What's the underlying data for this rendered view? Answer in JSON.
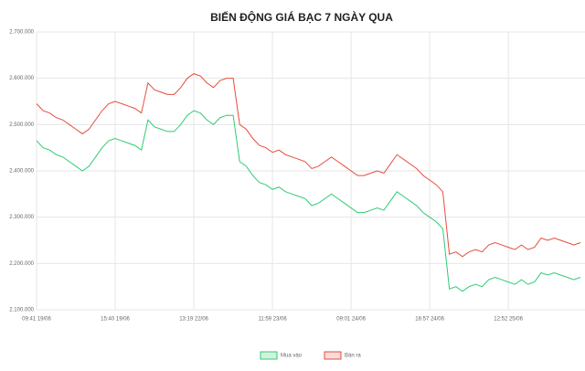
{
  "chart_data": {
    "type": "line",
    "title": "BIẾN ĐỘNG GIÁ BẠC 7 NGÀY QUA",
    "categories": [
      "09:41 19/06",
      null,
      null,
      null,
      null,
      null,
      null,
      null,
      null,
      null,
      null,
      null,
      "15:40 19/06",
      null,
      null,
      null,
      null,
      null,
      null,
      null,
      null,
      null,
      null,
      null,
      "13:19 22/06",
      null,
      null,
      null,
      null,
      null,
      null,
      null,
      null,
      null,
      null,
      null,
      "11:59 23/06",
      null,
      null,
      null,
      null,
      null,
      null,
      null,
      null,
      null,
      null,
      null,
      "09:01 24/06",
      null,
      null,
      null,
      null,
      null,
      null,
      null,
      null,
      null,
      null,
      null,
      "16:57 24/06",
      null,
      null,
      null,
      null,
      null,
      null,
      null,
      null,
      null,
      null,
      null,
      "12:52 25/06",
      null,
      null,
      null,
      null,
      null,
      null,
      null,
      null,
      null,
      null,
      null
    ],
    "series": [
      {
        "name": "Mua vào",
        "color": "#2ecc71",
        "fill": "#d4f1e0",
        "values": [
          2465000,
          2450000,
          2445000,
          2435000,
          2430000,
          2420000,
          2410000,
          2400000,
          2410000,
          2430000,
          2450000,
          2465000,
          2470000,
          2465000,
          2460000,
          2455000,
          2445000,
          2510000,
          2495000,
          2490000,
          2485000,
          2485000,
          2500000,
          2520000,
          2530000,
          2525000,
          2510000,
          2500000,
          2515000,
          2520000,
          2520000,
          2420000,
          2410000,
          2390000,
          2375000,
          2370000,
          2360000,
          2365000,
          2355000,
          2350000,
          2345000,
          2340000,
          2325000,
          2330000,
          2340000,
          2350000,
          2340000,
          2330000,
          2320000,
          2310000,
          2310000,
          2315000,
          2320000,
          2315000,
          2335000,
          2355000,
          2345000,
          2335000,
          2325000,
          2310000,
          2300000,
          2290000,
          2275000,
          2145000,
          2150000,
          2140000,
          2150000,
          2155000,
          2150000,
          2165000,
          2170000,
          2165000,
          2160000,
          2155000,
          2165000,
          2155000,
          2160000,
          2180000,
          2175000,
          2180000,
          2175000,
          2170000,
          2165000,
          2170000
        ]
      },
      {
        "name": "Bán ra",
        "color": "#e74c3c",
        "fill": "#fadbd8",
        "values": [
          2545000,
          2530000,
          2525000,
          2515000,
          2510000,
          2500000,
          2490000,
          2480000,
          2490000,
          2510000,
          2530000,
          2545000,
          2550000,
          2545000,
          2540000,
          2535000,
          2525000,
          2590000,
          2575000,
          2570000,
          2565000,
          2565000,
          2580000,
          2600000,
          2610000,
          2605000,
          2590000,
          2580000,
          2595000,
          2600000,
          2600000,
          2500000,
          2490000,
          2470000,
          2455000,
          2450000,
          2440000,
          2445000,
          2435000,
          2430000,
          2425000,
          2420000,
          2405000,
          2410000,
          2420000,
          2430000,
          2420000,
          2410000,
          2400000,
          2390000,
          2390000,
          2395000,
          2400000,
          2395000,
          2415000,
          2435000,
          2425000,
          2415000,
          2405000,
          2390000,
          2380000,
          2370000,
          2355000,
          2220000,
          2225000,
          2215000,
          2225000,
          2230000,
          2225000,
          2240000,
          2245000,
          2240000,
          2235000,
          2230000,
          2240000,
          2230000,
          2235000,
          2255000,
          2250000,
          2255000,
          2250000,
          2245000,
          2240000,
          2245000
        ]
      }
    ],
    "ylim": [
      2100000,
      2700000
    ],
    "yticks": [
      {
        "value": 2100000,
        "label": "2.100.000"
      },
      {
        "value": 2200000,
        "label": "2.200.000"
      },
      {
        "value": 2300000,
        "label": "2.300.000"
      },
      {
        "value": 2400000,
        "label": "2.400.000"
      },
      {
        "value": 2500000,
        "label": "2.500.000"
      },
      {
        "value": 2600000,
        "label": "2.600.000"
      },
      {
        "value": 2700000,
        "label": "2.700.000"
      }
    ],
    "grid": true,
    "legend": "bottom"
  }
}
